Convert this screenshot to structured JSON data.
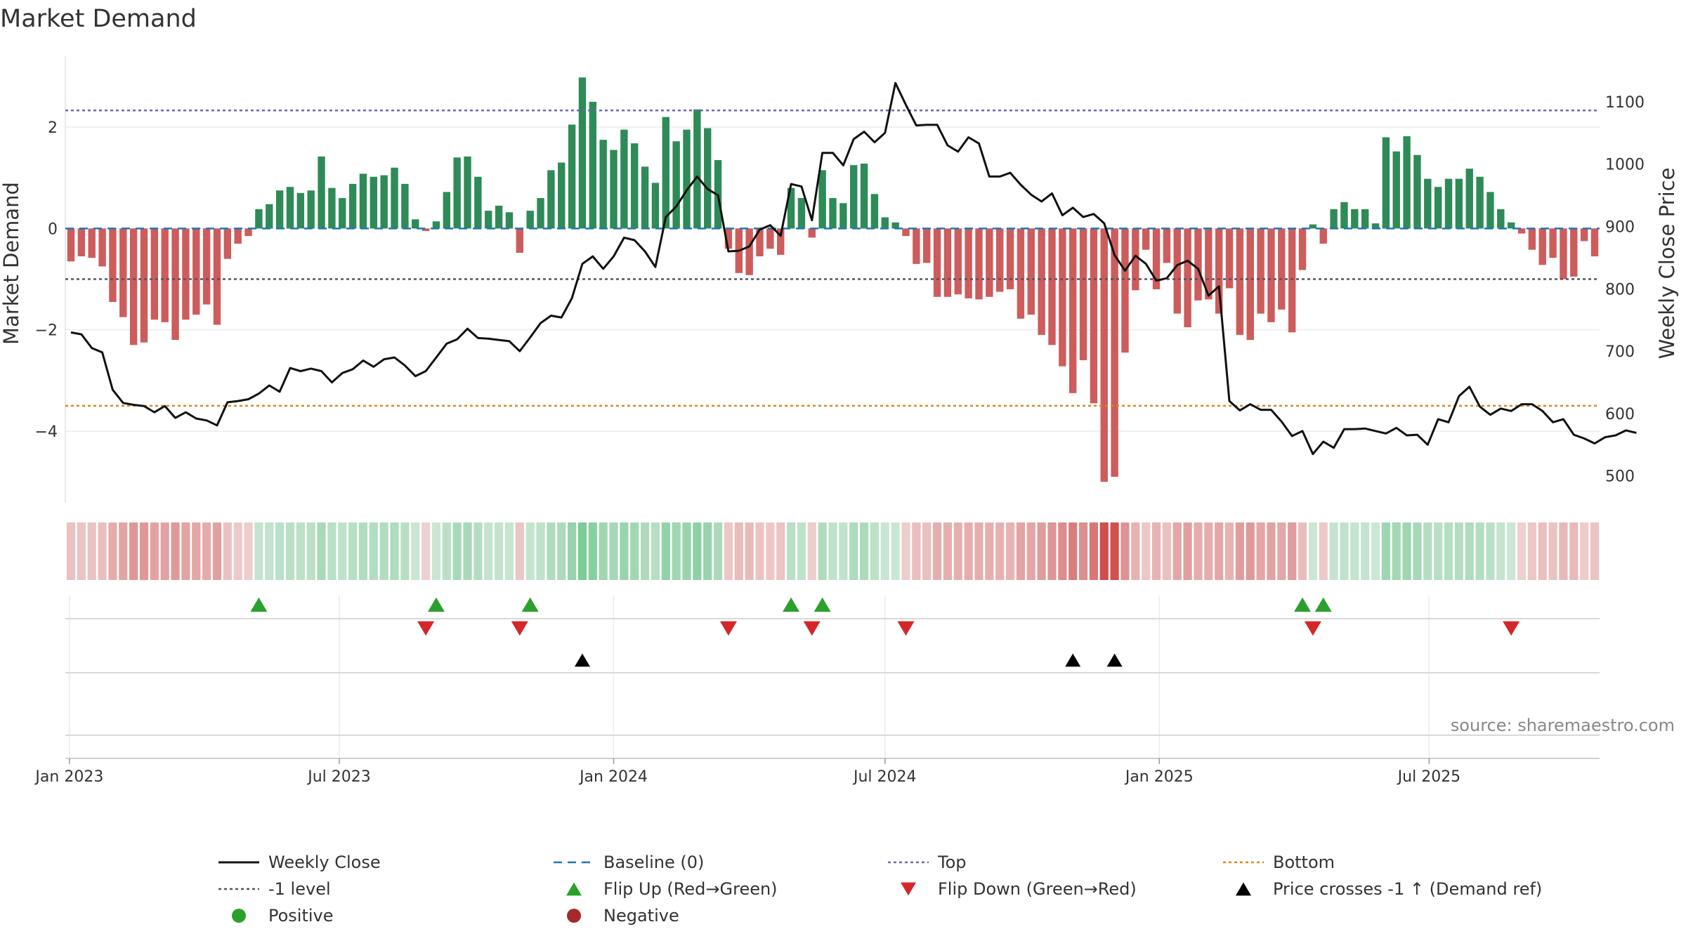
{
  "chart_data": {
    "type": "bar+line",
    "title": "Market Demand",
    "ylabel_left": "Market Demand",
    "ylabel_right": "Weekly Close Price",
    "source": "source: sharemaestro.com",
    "x_start": "2023-01-02",
    "x_tick_labels": [
      "Jan 2023",
      "Jul 2023",
      "Jan 2024",
      "Jul 2024",
      "Jan 2025",
      "Jul 2025"
    ],
    "x_tick_dates": [
      "2023-01-01",
      "2023-07-01",
      "2024-01-01",
      "2024-07-01",
      "2025-01-01",
      "2025-07-01"
    ],
    "ylim_left": [
      -5.4,
      3.4
    ],
    "yticks_left": [
      2,
      0,
      -2,
      -4
    ],
    "ytick_labels_left": [
      "2",
      "0",
      "−2",
      "−4"
    ],
    "ylim_right": [
      458,
      1173
    ],
    "yticks_right": [
      1100,
      1000,
      900,
      800,
      700,
      600,
      500
    ],
    "ytick_labels_right": [
      "1100",
      "1000",
      "900",
      "800",
      "700",
      "600",
      "500"
    ],
    "reference_lines": {
      "top": 2.33,
      "bottom": -3.5,
      "minus_one_level": -1.0,
      "baseline": 0
    },
    "demand": [
      -0.65,
      -0.55,
      -0.58,
      -0.75,
      -1.45,
      -1.75,
      -2.3,
      -2.25,
      -1.8,
      -1.85,
      -2.2,
      -1.8,
      -1.7,
      -1.5,
      -1.9,
      -0.6,
      -0.3,
      -0.15,
      0.38,
      0.48,
      0.75,
      0.82,
      0.7,
      0.75,
      1.42,
      0.8,
      0.6,
      0.88,
      1.08,
      1.02,
      1.05,
      1.2,
      0.88,
      0.18,
      -0.05,
      0.14,
      0.72,
      1.4,
      1.42,
      1.02,
      0.35,
      0.45,
      0.32,
      -0.48,
      0.35,
      0.6,
      1.15,
      1.3,
      2.05,
      2.98,
      2.5,
      1.75,
      1.55,
      1.95,
      1.68,
      1.22,
      0.9,
      2.2,
      1.72,
      1.95,
      2.35,
      1.98,
      1.35,
      -0.4,
      -0.88,
      -0.92,
      -0.55,
      -0.4,
      -0.52,
      0.8,
      0.6,
      -0.18,
      1.15,
      0.6,
      0.5,
      1.25,
      1.28,
      0.68,
      0.22,
      0.12,
      -0.15,
      -0.7,
      -0.68,
      -1.35,
      -1.35,
      -1.3,
      -1.38,
      -1.4,
      -1.35,
      -1.25,
      -1.2,
      -1.78,
      -1.7,
      -2.1,
      -2.3,
      -2.72,
      -3.25,
      -2.6,
      -3.45,
      -5.0,
      -4.9,
      -2.45,
      -1.22,
      -0.42,
      -1.2,
      -0.68,
      -1.68,
      -1.95,
      -1.42,
      -1.4,
      -1.68,
      -1.18,
      -2.1,
      -2.2,
      -1.68,
      -1.85,
      -1.6,
      -2.05,
      -0.82,
      0.08,
      -0.3,
      0.38,
      0.52,
      0.38,
      0.38,
      0.1,
      1.8,
      1.52,
      1.82,
      1.45,
      0.98,
      0.82,
      0.98,
      0.98,
      1.18,
      1.02,
      0.72,
      0.38,
      0.12,
      -0.1,
      -0.42,
      -0.72,
      -0.58,
      -1.0,
      -0.95,
      -0.25,
      -0.55
    ],
    "weekly_close": [
      730,
      727,
      705,
      698,
      638,
      617,
      614,
      612,
      602,
      612,
      593,
      602,
      592,
      589,
      581,
      618,
      620,
      623,
      632,
      645,
      635,
      673,
      668,
      672,
      668,
      650,
      665,
      671,
      685,
      675,
      687,
      690,
      677,
      660,
      668,
      690,
      712,
      719,
      736,
      721,
      720,
      718,
      716,
      700,
      722,
      745,
      757,
      754,
      785,
      840,
      852,
      832,
      852,
      882,
      878,
      860,
      835,
      915,
      932,
      958,
      980,
      960,
      950,
      860,
      861,
      868,
      895,
      902,
      885,
      968,
      964,
      910,
      1018,
      1018,
      998,
      1040,
      1052,
      1035,
      1050,
      1130,
      1095,
      1062,
      1063,
      1063,
      1030,
      1020,
      1043,
      1033,
      980,
      980,
      986,
      967,
      951,
      940,
      953,
      918,
      930,
      915,
      920,
      905,
      854,
      829,
      853,
      840,
      813,
      817,
      838,
      845,
      832,
      789,
      804,
      620,
      605,
      615,
      606,
      606,
      587,
      564,
      572,
      535,
      555,
      545,
      575,
      575,
      576,
      572,
      568,
      577,
      565,
      566,
      550,
      591,
      586,
      628,
      643,
      611,
      598,
      608,
      604,
      615,
      615,
      604,
      586,
      591,
      566,
      560,
      552,
      562,
      565,
      573,
      569
    ],
    "strip_hint": "Per-week demand intensity strip (green = positive, red = negative)",
    "flip_up_weeks": [
      18,
      35,
      44,
      69,
      72,
      118,
      120
    ],
    "flip_down_weeks": [
      34,
      43,
      63,
      71,
      80,
      119,
      138
    ],
    "price_cross_weeks": [
      49,
      96,
      100
    ],
    "colors": {
      "bar_positive": "#2e8b57",
      "bar_negative": "#cd5c5c",
      "price_line": "#111111",
      "baseline": "#1f77b4",
      "top": "#6a6ab0",
      "bottom": "#d98a1e",
      "minus_one": "#555566",
      "flip_up": "#2ca02c",
      "flip_down": "#d62728",
      "price_cross": "#000000",
      "positive_dot": "#2ca02c",
      "negative_dot": "#a52a2a"
    },
    "legend": [
      {
        "label": "Weekly Close",
        "kind": "line-solid",
        "color": "#111111"
      },
      {
        "label": "Baseline (0)",
        "kind": "line-dash",
        "color": "#1f77b4"
      },
      {
        "label": "Top",
        "kind": "line-dot",
        "color": "#6a6ab0"
      },
      {
        "label": "Bottom",
        "kind": "line-dot",
        "color": "#d98a1e"
      },
      {
        "label": "-1 level",
        "kind": "line-dot",
        "color": "#555566"
      },
      {
        "label": "Flip Up (Red→Green)",
        "kind": "tri-up",
        "color": "#2ca02c"
      },
      {
        "label": "Flip Down (Green→Red)",
        "kind": "tri-down",
        "color": "#d62728"
      },
      {
        "label": "Price crosses -1 ↑ (Demand ref)",
        "kind": "tri-up",
        "color": "#000000"
      },
      {
        "label": "Positive",
        "kind": "dot",
        "color": "#2ca02c"
      },
      {
        "label": "Negative",
        "kind": "dot",
        "color": "#a52a2a"
      }
    ]
  }
}
